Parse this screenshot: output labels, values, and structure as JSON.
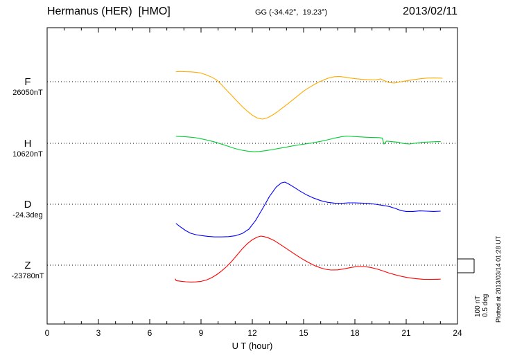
{
  "header": {
    "title": "Hermanus (HER)  [HMO]",
    "coords": "GG (-34.42°,  19.23°)",
    "date": "2013/02/11"
  },
  "annotations": {
    "scale_nt": "100 nT",
    "scale_deg": "0.5 deg",
    "plotted_at": "Plotted at 2013/03/14 01:28 UT"
  },
  "chart_data": {
    "type": "line",
    "title": "Hermanus (HER) [HMO] magnetogram",
    "xlabel": "U T (hour)",
    "xlim": [
      0,
      24
    ],
    "xticks": [
      0,
      3,
      6,
      9,
      12,
      15,
      18,
      21,
      24
    ],
    "minor_tick_step": 1,
    "grid": "dotted baseline per component",
    "scale_bar": {
      "nT": 100,
      "deg": 0.5
    },
    "series": [
      {
        "name": "F",
        "baseline_label": "26050nT",
        "baseline_value": 26050,
        "unit": "nT",
        "color": "#FFAA00",
        "points": [
          [
            7.55,
            72
          ],
          [
            7.8,
            74
          ],
          [
            8.1,
            72
          ],
          [
            8.4,
            71
          ],
          [
            8.7,
            68
          ],
          [
            9.0,
            62
          ],
          [
            9.3,
            50
          ],
          [
            9.6,
            34
          ],
          [
            9.9,
            14
          ],
          [
            10.2,
            -22
          ],
          [
            10.5,
            -62
          ],
          [
            10.8,
            -100
          ],
          [
            11.1,
            -140
          ],
          [
            11.4,
            -178
          ],
          [
            11.7,
            -212
          ],
          [
            12.0,
            -242
          ],
          [
            12.3,
            -263
          ],
          [
            12.6,
            -270
          ],
          [
            12.9,
            -260
          ],
          [
            13.2,
            -240
          ],
          [
            13.5,
            -214
          ],
          [
            13.8,
            -186
          ],
          [
            14.1,
            -158
          ],
          [
            14.4,
            -128
          ],
          [
            14.7,
            -98
          ],
          [
            15.0,
            -68
          ],
          [
            15.3,
            -44
          ],
          [
            15.6,
            -22
          ],
          [
            15.9,
            -2
          ],
          [
            16.2,
            14
          ],
          [
            16.5,
            28
          ],
          [
            16.8,
            36
          ],
          [
            17.1,
            38
          ],
          [
            17.4,
            33
          ],
          [
            17.7,
            27
          ],
          [
            18.0,
            22
          ],
          [
            18.4,
            17
          ],
          [
            18.8,
            14
          ],
          [
            19.2,
            12
          ],
          [
            19.5,
            20
          ],
          [
            19.7,
            8
          ],
          [
            20.0,
            -6
          ],
          [
            20.3,
            -10
          ],
          [
            20.6,
            -2
          ],
          [
            21.0,
            6
          ],
          [
            21.4,
            14
          ],
          [
            21.8,
            21
          ],
          [
            22.2,
            26
          ],
          [
            22.6,
            27
          ],
          [
            23.0,
            26
          ],
          [
            23.1,
            25
          ]
        ]
      },
      {
        "name": "H",
        "baseline_label": "10620nT",
        "baseline_value": 10620,
        "unit": "nT",
        "color": "#00CC33",
        "points": [
          [
            7.55,
            50
          ],
          [
            7.8,
            49
          ],
          [
            8.1,
            47
          ],
          [
            8.4,
            44
          ],
          [
            8.7,
            40
          ],
          [
            9.0,
            33
          ],
          [
            9.3,
            25
          ],
          [
            9.6,
            16
          ],
          [
            9.9,
            6
          ],
          [
            10.2,
            -6
          ],
          [
            10.6,
            -22
          ],
          [
            11.0,
            -38
          ],
          [
            11.4,
            -50
          ],
          [
            11.8,
            -58
          ],
          [
            12.1,
            -61
          ],
          [
            12.4,
            -59
          ],
          [
            12.8,
            -53
          ],
          [
            13.2,
            -45
          ],
          [
            13.6,
            -36
          ],
          [
            14.0,
            -27
          ],
          [
            14.4,
            -18
          ],
          [
            14.8,
            -10
          ],
          [
            15.2,
            -3
          ],
          [
            15.6,
            5
          ],
          [
            16.0,
            14
          ],
          [
            16.4,
            25
          ],
          [
            16.8,
            37
          ],
          [
            17.2,
            47
          ],
          [
            17.5,
            52
          ],
          [
            17.8,
            50
          ],
          [
            18.2,
            47
          ],
          [
            18.6,
            44
          ],
          [
            19.0,
            42
          ],
          [
            19.4,
            41
          ],
          [
            19.6,
            38
          ],
          [
            19.7,
            -6
          ],
          [
            19.85,
            16
          ],
          [
            20.1,
            13
          ],
          [
            20.5,
            8
          ],
          [
            20.9,
            -2
          ],
          [
            21.2,
            -5
          ],
          [
            21.6,
            2
          ],
          [
            22.0,
            7
          ],
          [
            22.4,
            10
          ],
          [
            22.8,
            12
          ],
          [
            23.0,
            12
          ]
        ]
      },
      {
        "name": "D",
        "baseline_label": "-24.3deg",
        "baseline_value": -24.3,
        "unit": "deg",
        "color": "#0000FF",
        "points": [
          [
            7.55,
            -0.7
          ],
          [
            7.8,
            -0.82
          ],
          [
            8.1,
            -0.95
          ],
          [
            8.4,
            -1.05
          ],
          [
            8.7,
            -1.1
          ],
          [
            9.0,
            -1.13
          ],
          [
            9.4,
            -1.16
          ],
          [
            9.8,
            -1.18
          ],
          [
            10.2,
            -1.18
          ],
          [
            10.6,
            -1.17
          ],
          [
            11.0,
            -1.14
          ],
          [
            11.4,
            -1.06
          ],
          [
            11.8,
            -0.9
          ],
          [
            12.2,
            -0.58
          ],
          [
            12.6,
            -0.16
          ],
          [
            13.0,
            0.28
          ],
          [
            13.4,
            0.62
          ],
          [
            13.7,
            0.77
          ],
          [
            13.9,
            0.8
          ],
          [
            14.1,
            0.74
          ],
          [
            14.4,
            0.63
          ],
          [
            14.8,
            0.47
          ],
          [
            15.2,
            0.33
          ],
          [
            15.6,
            0.22
          ],
          [
            16.0,
            0.13
          ],
          [
            16.4,
            0.07
          ],
          [
            16.8,
            0.04
          ],
          [
            17.2,
            0.03
          ],
          [
            17.6,
            0.05
          ],
          [
            18.0,
            0.05
          ],
          [
            18.4,
            0.04
          ],
          [
            18.8,
            0.03
          ],
          [
            19.2,
            0.0
          ],
          [
            19.6,
            -0.04
          ],
          [
            20.0,
            -0.08
          ],
          [
            20.4,
            -0.16
          ],
          [
            20.7,
            -0.23
          ],
          [
            21.0,
            -0.26
          ],
          [
            21.4,
            -0.26
          ],
          [
            21.8,
            -0.24
          ],
          [
            22.2,
            -0.25
          ],
          [
            22.6,
            -0.26
          ],
          [
            23.0,
            -0.25
          ]
        ]
      },
      {
        "name": "Z",
        "baseline_label": "-23780nT",
        "baseline_value": -23780,
        "unit": "nT",
        "color": "#FF0000",
        "points": [
          [
            7.5,
            -100
          ],
          [
            7.55,
            -112
          ],
          [
            7.8,
            -116
          ],
          [
            8.1,
            -120
          ],
          [
            8.4,
            -122
          ],
          [
            8.7,
            -121
          ],
          [
            9.0,
            -117
          ],
          [
            9.3,
            -108
          ],
          [
            9.6,
            -92
          ],
          [
            9.9,
            -70
          ],
          [
            10.2,
            -42
          ],
          [
            10.5,
            -10
          ],
          [
            10.8,
            28
          ],
          [
            11.1,
            72
          ],
          [
            11.4,
            116
          ],
          [
            11.7,
            154
          ],
          [
            12.0,
            184
          ],
          [
            12.3,
            203
          ],
          [
            12.5,
            210
          ],
          [
            12.7,
            206
          ],
          [
            13.0,
            194
          ],
          [
            13.3,
            176
          ],
          [
            13.6,
            152
          ],
          [
            13.9,
            128
          ],
          [
            14.2,
            103
          ],
          [
            14.5,
            78
          ],
          [
            14.8,
            54
          ],
          [
            15.1,
            32
          ],
          [
            15.4,
            12
          ],
          [
            15.7,
            -6
          ],
          [
            16.0,
            -20
          ],
          [
            16.3,
            -30
          ],
          [
            16.6,
            -35
          ],
          [
            17.0,
            -34
          ],
          [
            17.4,
            -26
          ],
          [
            17.8,
            -16
          ],
          [
            18.1,
            -11
          ],
          [
            18.5,
            -10
          ],
          [
            18.9,
            -16
          ],
          [
            19.3,
            -28
          ],
          [
            19.6,
            -40
          ],
          [
            20.0,
            -57
          ],
          [
            20.4,
            -71
          ],
          [
            20.8,
            -83
          ],
          [
            21.2,
            -92
          ],
          [
            21.6,
            -98
          ],
          [
            22.0,
            -102
          ],
          [
            22.4,
            -103
          ],
          [
            22.8,
            -102
          ],
          [
            23.0,
            -101
          ]
        ]
      }
    ]
  }
}
